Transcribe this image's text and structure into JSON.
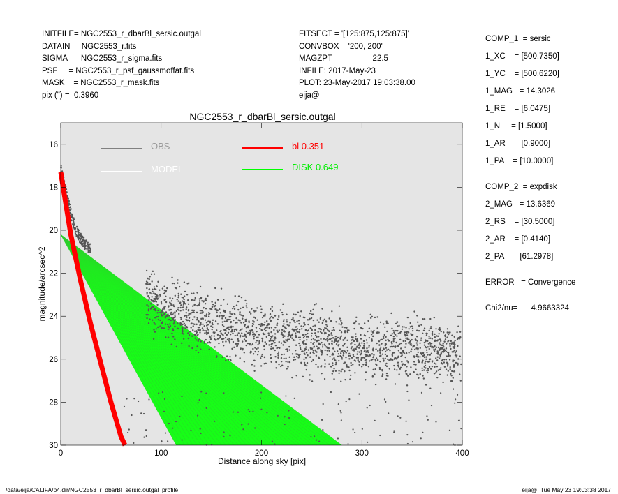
{
  "header": {
    "left_lines": [
      "INITFILE= NGC2553_r_dbarBl_sersic.outgal",
      "DATAIN  = NGC2553_r.fits",
      "SIGMA   = NGC2553_r_sigma.fits",
      "PSF     = NGC2553_r_psf_gaussmoffat.fits",
      "MASK    = NGC2553_r_mask.fits",
      "pix (\") =  0.3960"
    ],
    "mid_lines": [
      "FITSECT = '[125:875,125:875]'",
      "CONVBOX = '200, 200'",
      "MAGZPT  =              22.5",
      "INFILE: 2017-May-23",
      "PLOT: 23-May-2017 19:03:38.00",
      "eija@"
    ]
  },
  "params": [
    "COMP_1  = sersic",
    "1_XC    = [500.7350]",
    "1_YC    = [500.6220]",
    "1_MAG   = 14.3026",
    "1_RE    = [6.0475]",
    "1_N     = [1.5000]",
    "1_AR    = [0.9000]",
    "1_PA    = [10.0000]",
    "COMP_2  = expdisk",
    "2_MAG   = 13.6369",
    "2_RS    = [30.5000]",
    "2_AR    = [0.4140]",
    "2_PA    = [61.2978]",
    "ERROR   = Convergence",
    "Chi2/nu=      4.9663324"
  ],
  "footer": {
    "left": "/data/eija/CALIFA/p4.dir/NGC2553_r_dbarBl_sersic.outgal_profile",
    "right": "eija@  Tue May 23 19:03:38 2017"
  },
  "chart_data": {
    "type": "scatter",
    "title": "NGC2553_r_dbarBl_sersic.outgal",
    "xlabel": "Distance along sky [pix]",
    "ylabel": "magnitude/arcsec^2",
    "xlim": [
      0,
      400
    ],
    "ylim": [
      30,
      15
    ],
    "y_inverted": true,
    "xticks": [
      0,
      100,
      200,
      300,
      400
    ],
    "yticks": [
      16,
      18,
      20,
      22,
      24,
      26,
      28,
      30
    ],
    "grid": false,
    "background": "#e5e5e5",
    "legend": [
      {
        "label": "OBS",
        "color": "#808080"
      },
      {
        "label": "MODEL",
        "color": "#ffffff"
      },
      {
        "label": "bl  0.351",
        "color": "#ff0000"
      },
      {
        "label": "DISK  0.649",
        "color": "#00ff00"
      }
    ],
    "series": [
      {
        "name": "OBS",
        "color": "#555555",
        "x": [
          0,
          5,
          10,
          15,
          20,
          25,
          30,
          40,
          60,
          80,
          90,
          100,
          150,
          200,
          250,
          300,
          350,
          400
        ],
        "y": [
          17.1,
          18.2,
          19.2,
          20.0,
          20.4,
          20.7,
          20.9,
          21.4,
          22.1,
          22.8,
          23.3,
          23.6,
          24.3,
          24.8,
          25.2,
          25.5,
          25.6,
          25.7
        ],
        "spread_outer": 1.4
      },
      {
        "name": "bl  0.351",
        "color": "#ff0000",
        "x": [
          0,
          10,
          20,
          30,
          40,
          50,
          60,
          64
        ],
        "y": [
          17.3,
          20.2,
          22.4,
          24.4,
          26.2,
          28.0,
          29.6,
          30.0
        ]
      },
      {
        "name": "DISK  0.649",
        "color": "#00ff00",
        "x_start": 0,
        "y_start": 20.2,
        "x_end_upper": 280,
        "x_end_lower": 115,
        "y_end": 30.0
      }
    ]
  }
}
